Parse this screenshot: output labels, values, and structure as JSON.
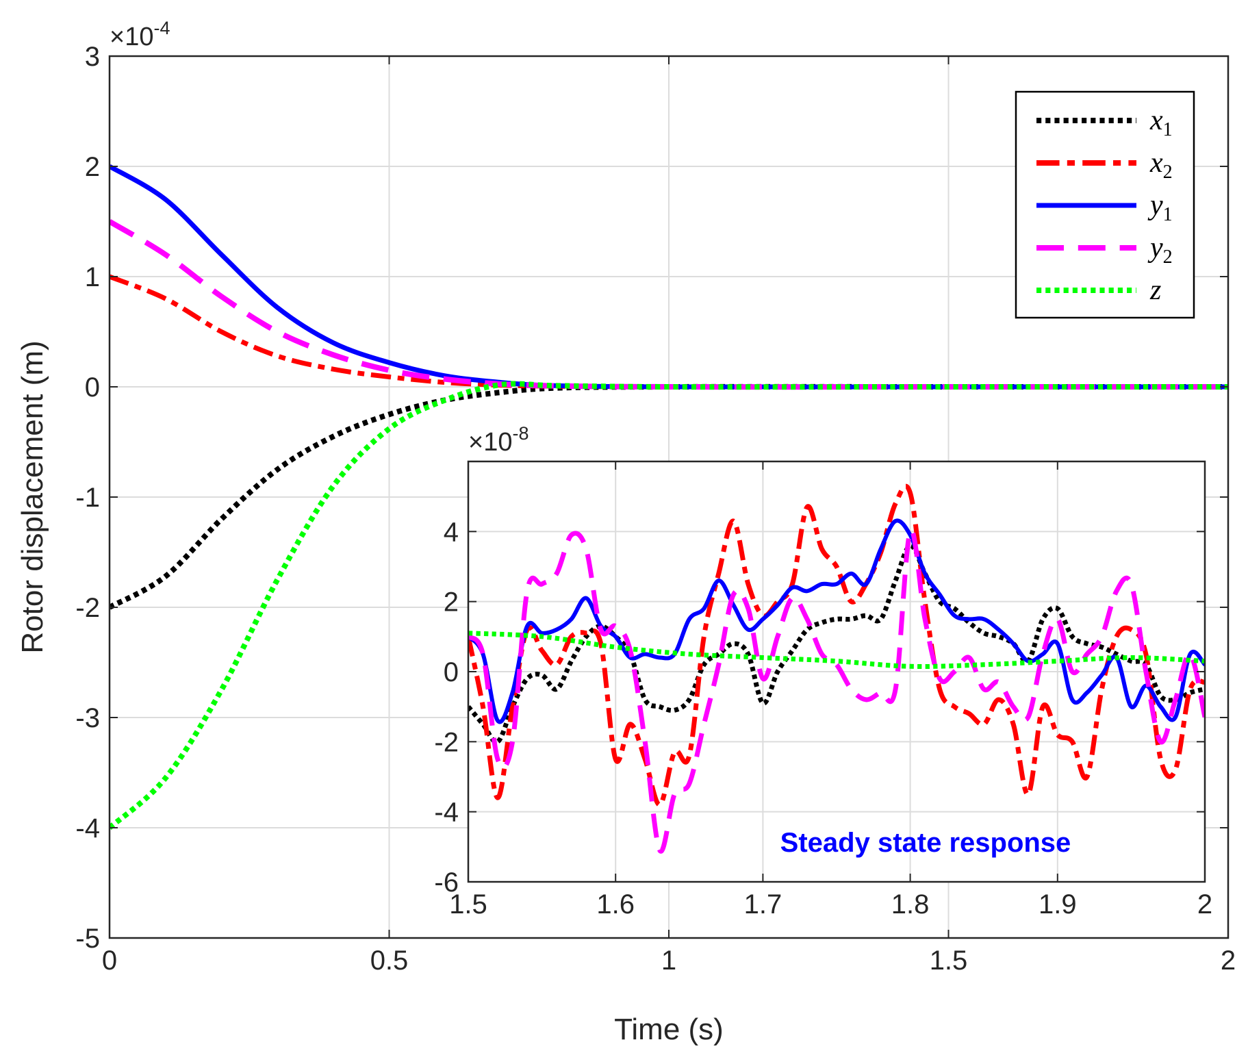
{
  "chart_data": [
    {
      "type": "line",
      "title": "",
      "xlabel": "Time (s)",
      "ylabel": "Rotor displacement (m)",
      "xlim": [
        0,
        2
      ],
      "ylim": [
        -5,
        3
      ],
      "y_multiplier": "×10",
      "y_exponent": "-4",
      "x_ticks": [
        "0",
        "0.5",
        "1",
        "1.5",
        "2"
      ],
      "y_ticks": [
        "-5",
        "-4",
        "-3",
        "-2",
        "-1",
        "0",
        "1",
        "2",
        "3"
      ],
      "grid": true,
      "legend_position": "top-right",
      "series": [
        {
          "name": "x",
          "sub": "1",
          "color": "#000000",
          "style": "dotted",
          "x": [
            0,
            0.1,
            0.2,
            0.3,
            0.4,
            0.5,
            0.6,
            0.7,
            0.8,
            1.0,
            1.5,
            2.0
          ],
          "y": [
            -2.0,
            -1.72,
            -1.2,
            -0.75,
            -0.45,
            -0.25,
            -0.12,
            -0.05,
            -0.01,
            0,
            0,
            0
          ]
        },
        {
          "name": "x",
          "sub": "2",
          "color": "#ff0000",
          "style": "dash-dot",
          "x": [
            0,
            0.1,
            0.2,
            0.3,
            0.4,
            0.5,
            0.6,
            0.7,
            0.8,
            1.0,
            1.5,
            2.0
          ],
          "y": [
            1.0,
            0.8,
            0.5,
            0.28,
            0.16,
            0.09,
            0.04,
            0.015,
            0.005,
            0,
            0,
            0
          ]
        },
        {
          "name": "y",
          "sub": "1",
          "color": "#0000ff",
          "style": "solid",
          "x": [
            0,
            0.1,
            0.2,
            0.3,
            0.4,
            0.5,
            0.6,
            0.7,
            0.8,
            1.0,
            1.5,
            2.0
          ],
          "y": [
            2.0,
            1.7,
            1.2,
            0.72,
            0.4,
            0.22,
            0.1,
            0.04,
            0.01,
            0,
            0,
            0
          ]
        },
        {
          "name": "y",
          "sub": "2",
          "color": "#ff00ff",
          "style": "dashed",
          "x": [
            0,
            0.1,
            0.2,
            0.3,
            0.4,
            0.5,
            0.6,
            0.7,
            0.8,
            1.0,
            1.5,
            2.0
          ],
          "y": [
            1.5,
            1.2,
            0.82,
            0.5,
            0.29,
            0.15,
            0.07,
            0.025,
            0.008,
            0,
            0,
            0
          ]
        },
        {
          "name": "z",
          "sub": "",
          "color": "#00ff00",
          "style": "dotted",
          "x": [
            0,
            0.1,
            0.2,
            0.3,
            0.4,
            0.5,
            0.6,
            0.7,
            0.8,
            1.0,
            1.5,
            2.0
          ],
          "y": [
            -4.0,
            -3.55,
            -2.75,
            -1.75,
            -0.9,
            -0.38,
            -0.12,
            0.02,
            0.01,
            0,
            0,
            0
          ]
        }
      ]
    },
    {
      "type": "line",
      "title": "",
      "annotation": "Steady state response",
      "annotation_color": "#0000ff",
      "xlim": [
        1.5,
        2
      ],
      "ylim": [
        -6,
        6
      ],
      "y_multiplier": "×10",
      "y_exponent": "-8",
      "x_ticks": [
        "1.5",
        "1.6",
        "1.7",
        "1.8",
        "1.9",
        "2"
      ],
      "y_ticks": [
        "-6",
        "-4",
        "-2",
        "0",
        "2",
        "4"
      ],
      "grid": true,
      "series": [
        {
          "name": "x1",
          "color": "#000000",
          "style": "dotted",
          "x": [
            1.5,
            1.51,
            1.52,
            1.53,
            1.54,
            1.55,
            1.56,
            1.57,
            1.58,
            1.59,
            1.6,
            1.61,
            1.62,
            1.63,
            1.64,
            1.65,
            1.66,
            1.67,
            1.68,
            1.69,
            1.7,
            1.71,
            1.72,
            1.73,
            1.74,
            1.75,
            1.76,
            1.77,
            1.78,
            1.79,
            1.8,
            1.81,
            1.82,
            1.83,
            1.84,
            1.85,
            1.86,
            1.87,
            1.88,
            1.89,
            1.9,
            1.91,
            1.92,
            1.93,
            1.94,
            1.95,
            1.96,
            1.97,
            1.98,
            1.99,
            2.0
          ],
          "y": [
            -1.0,
            -1.5,
            -2.0,
            -1.0,
            -0.2,
            -0.1,
            -0.5,
            0.3,
            1.0,
            1.3,
            1.0,
            0.5,
            -0.8,
            -1.0,
            -1.1,
            -0.8,
            0.2,
            0.5,
            0.8,
            0.5,
            -0.9,
            0.0,
            0.6,
            1.2,
            1.4,
            1.5,
            1.5,
            1.6,
            1.5,
            2.6,
            3.6,
            2.8,
            2.0,
            1.8,
            1.4,
            1.1,
            1.0,
            0.8,
            0.3,
            1.5,
            1.8,
            1.0,
            0.8,
            0.7,
            0.5,
            0.3,
            0.2,
            -0.7,
            -0.8,
            -0.6,
            -0.5
          ]
        },
        {
          "name": "x2",
          "color": "#ff0000",
          "style": "dash-dot",
          "x": [
            1.5,
            1.51,
            1.52,
            1.53,
            1.54,
            1.55,
            1.56,
            1.57,
            1.58,
            1.59,
            1.6,
            1.61,
            1.62,
            1.63,
            1.64,
            1.65,
            1.66,
            1.67,
            1.68,
            1.69,
            1.7,
            1.71,
            1.72,
            1.73,
            1.74,
            1.75,
            1.76,
            1.77,
            1.78,
            1.79,
            1.8,
            1.81,
            1.82,
            1.83,
            1.84,
            1.85,
            1.86,
            1.87,
            1.88,
            1.89,
            1.9,
            1.91,
            1.92,
            1.93,
            1.94,
            1.95,
            1.96,
            1.97,
            1.98,
            1.99,
            2.0
          ],
          "y": [
            1.0,
            -1.0,
            -3.6,
            -1.0,
            1.2,
            0.6,
            0.2,
            1.0,
            1.1,
            0.8,
            -2.5,
            -1.5,
            -2.5,
            -3.8,
            -2.3,
            -2.4,
            1.0,
            2.8,
            4.3,
            2.5,
            1.6,
            2.0,
            2.5,
            4.7,
            3.5,
            3.0,
            2.0,
            2.5,
            3.4,
            4.8,
            5.1,
            2.0,
            -0.5,
            -1.0,
            -1.2,
            -1.5,
            -0.8,
            -1.5,
            -3.5,
            -1.0,
            -1.8,
            -2.0,
            -3.0,
            -0.5,
            1.0,
            1.2,
            0.5,
            -2.5,
            -2.8,
            -0.5,
            -0.3
          ]
        },
        {
          "name": "y1",
          "color": "#0000ff",
          "style": "solid",
          "x": [
            1.5,
            1.51,
            1.52,
            1.53,
            1.54,
            1.55,
            1.56,
            1.57,
            1.58,
            1.59,
            1.6,
            1.61,
            1.62,
            1.63,
            1.64,
            1.65,
            1.66,
            1.67,
            1.68,
            1.69,
            1.7,
            1.71,
            1.72,
            1.73,
            1.74,
            1.75,
            1.76,
            1.77,
            1.78,
            1.79,
            1.8,
            1.81,
            1.82,
            1.83,
            1.84,
            1.85,
            1.86,
            1.87,
            1.88,
            1.89,
            1.9,
            1.91,
            1.92,
            1.93,
            1.94,
            1.95,
            1.96,
            1.97,
            1.98,
            1.99,
            2.0
          ],
          "y": [
            1.0,
            0.5,
            -1.4,
            -0.6,
            1.3,
            1.1,
            1.2,
            1.5,
            2.1,
            1.3,
            1.0,
            0.4,
            0.5,
            0.4,
            0.5,
            1.5,
            1.8,
            2.6,
            1.9,
            1.2,
            1.5,
            1.9,
            2.4,
            2.3,
            2.5,
            2.5,
            2.8,
            2.5,
            3.5,
            4.3,
            3.9,
            2.8,
            2.2,
            1.6,
            1.5,
            1.5,
            1.2,
            0.8,
            0.3,
            0.5,
            0.8,
            -0.8,
            -0.6,
            -0.1,
            0.4,
            -1.0,
            -0.4,
            -1.0,
            -1.3,
            0.5,
            0.2
          ]
        },
        {
          "name": "y2",
          "color": "#ff00ff",
          "style": "dashed",
          "x": [
            1.5,
            1.51,
            1.52,
            1.53,
            1.54,
            1.55,
            1.56,
            1.57,
            1.58,
            1.59,
            1.6,
            1.61,
            1.62,
            1.63,
            1.64,
            1.65,
            1.66,
            1.67,
            1.68,
            1.69,
            1.7,
            1.71,
            1.72,
            1.73,
            1.74,
            1.75,
            1.76,
            1.77,
            1.78,
            1.79,
            1.8,
            1.81,
            1.82,
            1.83,
            1.84,
            1.85,
            1.86,
            1.87,
            1.88,
            1.89,
            1.9,
            1.91,
            1.92,
            1.93,
            1.94,
            1.95,
            1.96,
            1.97,
            1.98,
            1.99,
            2.0
          ],
          "y": [
            1.0,
            0.5,
            -2.5,
            -2.0,
            2.3,
            2.5,
            2.8,
            3.9,
            3.5,
            1.2,
            1.3,
            0.6,
            -2.0,
            -5.1,
            -3.5,
            -3.2,
            -1.5,
            0.2,
            2.2,
            1.8,
            -0.2,
            1.0,
            2.1,
            1.5,
            0.5,
            0.2,
            -0.5,
            -0.8,
            -0.6,
            -0.5,
            4.0,
            1.5,
            -0.2,
            0.0,
            0.4,
            -0.5,
            -0.3,
            -1.0,
            -1.3,
            0.5,
            1.5,
            0.0,
            0.5,
            1.0,
            2.3,
            2.5,
            0.0,
            -2.0,
            -0.8,
            0.5,
            -1.3
          ]
        },
        {
          "name": "z",
          "color": "#00ff00",
          "style": "dotted",
          "x": [
            1.5,
            1.55,
            1.6,
            1.65,
            1.7,
            1.75,
            1.8,
            1.85,
            1.9,
            1.95,
            2.0
          ],
          "y": [
            1.1,
            1.0,
            0.7,
            0.5,
            0.4,
            0.3,
            0.15,
            0.2,
            0.3,
            0.4,
            0.3
          ]
        }
      ]
    }
  ]
}
